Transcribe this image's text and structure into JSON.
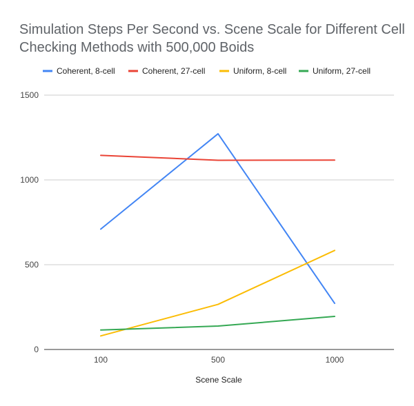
{
  "chart_data": {
    "type": "line",
    "title": "Simulation Steps Per Second vs. Scene Scale for Different Cell Checking Methods with 500,000 Boids",
    "xlabel": "Scene Scale",
    "ylabel": "",
    "categories": [
      "100",
      "500",
      "1000"
    ],
    "ylim": [
      0,
      1500
    ],
    "yticks": [
      0,
      500,
      1000,
      1500
    ],
    "grid": true,
    "legend_position": "top",
    "series": [
      {
        "name": "Coherent, 8-cell",
        "color": "#4285f4",
        "values": [
          710,
          1272,
          272
        ]
      },
      {
        "name": "Coherent, 27-cell",
        "color": "#ea4335",
        "values": [
          1145,
          1116,
          1117
        ]
      },
      {
        "name": "Uniform, 8-cell",
        "color": "#fbbc04",
        "values": [
          80,
          266,
          584
        ]
      },
      {
        "name": "Uniform, 27-cell",
        "color": "#34a853",
        "values": [
          115,
          138,
          195
        ]
      }
    ]
  }
}
